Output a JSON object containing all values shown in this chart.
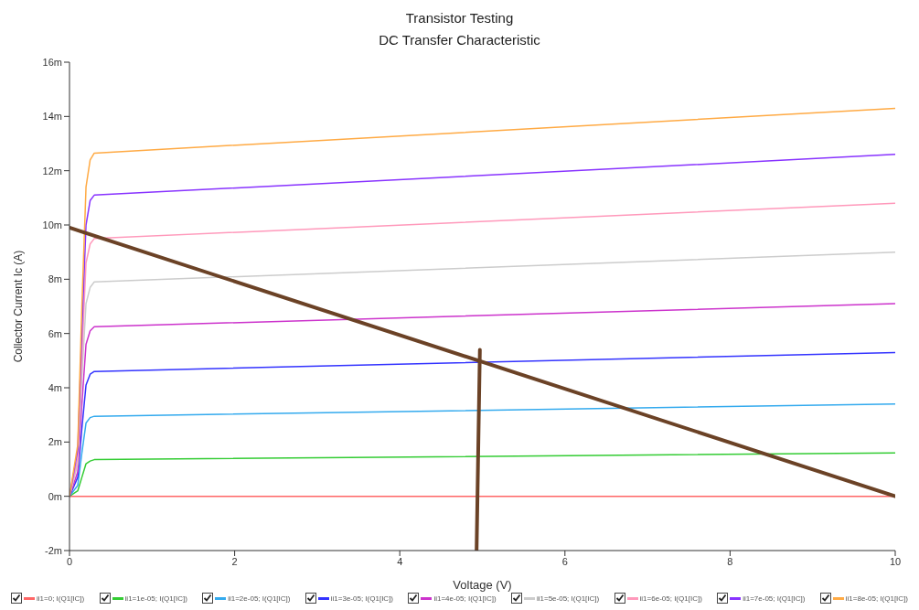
{
  "chart_data": {
    "type": "line",
    "title": "Transistor Testing",
    "subtitle": "DC Transfer Characteristic",
    "xlabel": "Voltage (V)",
    "ylabel": "Collector Current Ic (A)",
    "xlim": [
      0,
      10
    ],
    "xticks": [
      0,
      2,
      4,
      6,
      8,
      10
    ],
    "ylim": [
      -2,
      16
    ],
    "yticks": [
      {
        "value": -2,
        "label": "-2m"
      },
      {
        "value": 0,
        "label": "0m"
      },
      {
        "value": 2,
        "label": "2m"
      },
      {
        "value": 4,
        "label": "4m"
      },
      {
        "value": 6,
        "label": "6m"
      },
      {
        "value": 8,
        "label": "8m"
      },
      {
        "value": 10,
        "label": "10m"
      },
      {
        "value": 12,
        "label": "12m"
      },
      {
        "value": 14,
        "label": "14m"
      },
      {
        "value": 16,
        "label": "16m"
      }
    ],
    "grid": false,
    "legend": "bottom",
    "marker": "none",
    "line_style": "solid",
    "series": [
      {
        "name": "ii1=0; I(Q1[IC])",
        "color": "#ff6666",
        "x": [
          0,
          10
        ],
        "values": [
          0,
          0
        ]
      },
      {
        "name": "ii1=1e-05; I(Q1[IC])",
        "color": "#33cc33",
        "x": [
          0,
          0.1,
          0.15,
          0.2,
          0.25,
          0.3,
          10
        ],
        "values": [
          0,
          0.2,
          0.7,
          1.2,
          1.3,
          1.35,
          1.6
        ]
      },
      {
        "name": "ii1=2e-05; I(Q1[IC])",
        "color": "#33aaee",
        "x": [
          0,
          0.1,
          0.15,
          0.2,
          0.25,
          0.3,
          10
        ],
        "values": [
          0,
          0.4,
          1.6,
          2.7,
          2.9,
          2.95,
          3.4
        ]
      },
      {
        "name": "ii1=3e-05; I(Q1[IC])",
        "color": "#3333ff",
        "x": [
          0,
          0.1,
          0.15,
          0.2,
          0.25,
          0.3,
          10
        ],
        "values": [
          0,
          0.7,
          2.5,
          4.1,
          4.5,
          4.6,
          5.3
        ]
      },
      {
        "name": "ii1=4e-05; I(Q1[IC])",
        "color": "#cc33cc",
        "x": [
          0,
          0.1,
          0.15,
          0.2,
          0.25,
          0.3,
          10
        ],
        "values": [
          0,
          0.9,
          3.4,
          5.6,
          6.1,
          6.25,
          7.1
        ]
      },
      {
        "name": "ii1=5e-05; I(Q1[IC])",
        "color": "#cccccc",
        "x": [
          0,
          0.1,
          0.15,
          0.2,
          0.25,
          0.3,
          10
        ],
        "values": [
          0,
          1.2,
          4.4,
          7.1,
          7.7,
          7.9,
          9.0
        ]
      },
      {
        "name": "ii1=6e-05; I(Q1[IC])",
        "color": "#ff99bb",
        "x": [
          0,
          0.1,
          0.15,
          0.2,
          0.25,
          0.3,
          10
        ],
        "values": [
          0,
          1.4,
          5.2,
          8.6,
          9.3,
          9.5,
          10.8
        ]
      },
      {
        "name": "ii1=7e-05; I(Q1[IC])",
        "color": "#8833ff",
        "x": [
          0,
          0.1,
          0.15,
          0.2,
          0.25,
          0.3,
          10
        ],
        "values": [
          0,
          1.7,
          6.1,
          10.0,
          10.9,
          11.1,
          12.6
        ]
      },
      {
        "name": "ii1=8e-05; I(Q1[IC])",
        "color": "#ffaa44",
        "x": [
          0,
          0.1,
          0.15,
          0.2,
          0.25,
          0.3,
          10
        ],
        "values": [
          0,
          1.9,
          7.0,
          11.4,
          12.4,
          12.65,
          14.3
        ]
      },
      {
        "color": "#6b4226",
        "x": [
          0,
          10
        ],
        "values": [
          9.9,
          0
        ]
      },
      {
        "color": "#6b4226",
        "x": [
          4.93,
          4.97
        ],
        "values": [
          -2,
          5.4
        ]
      }
    ]
  }
}
